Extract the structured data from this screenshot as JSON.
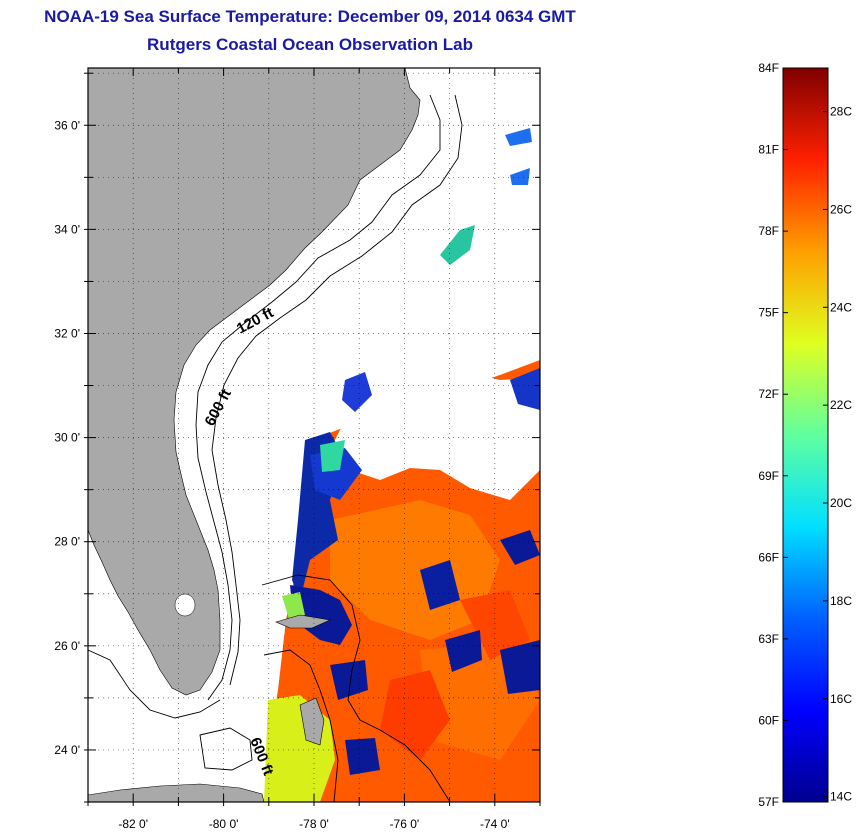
{
  "title": "NOAA-19 Sea Surface Temperature:  December 09, 2014 0634 GMT",
  "subtitle": "Rutgers Coastal Ocean Observation Lab",
  "map": {
    "lat_ticks": [
      "36 0'",
      "34 0'",
      "32 0'",
      "30 0'",
      "28 0'",
      "26 0'",
      "24 0'"
    ],
    "lon_ticks": [
      "-82 0'",
      "-80 0'",
      "-78 0'",
      "-76 0'",
      "-74 0'"
    ],
    "lat_values": [
      36,
      34,
      32,
      30,
      28,
      26,
      24
    ],
    "lon_values": [
      -82,
      -80,
      -78,
      -76,
      -74
    ],
    "lat_range": [
      23,
      37.1
    ],
    "lon_range": [
      -83,
      -73
    ],
    "isobath_labels": [
      "120 ft",
      "600 ft",
      "600 ft"
    ],
    "colors": {
      "land": "#a9a9a9",
      "cloud": "#ffffff",
      "warm_sst": "#ff5a00",
      "cold_sst": "#00108c"
    }
  },
  "colorbar": {
    "fahrenheit_labels": [
      "84F",
      "81F",
      "78F",
      "75F",
      "72F",
      "69F",
      "66F",
      "63F",
      "60F",
      "57F"
    ],
    "celsius_labels": [
      "28C",
      "26C",
      "24C",
      "22C",
      "20C",
      "18C",
      "16C",
      "14C"
    ],
    "f_range": [
      57,
      84
    ],
    "c_range": [
      13.89,
      28.89
    ],
    "f_values": [
      84,
      81,
      78,
      75,
      72,
      69,
      66,
      63,
      60,
      57
    ],
    "c_values": [
      28,
      26,
      24,
      22,
      20,
      18,
      16,
      14
    ],
    "colormap": "jet"
  }
}
